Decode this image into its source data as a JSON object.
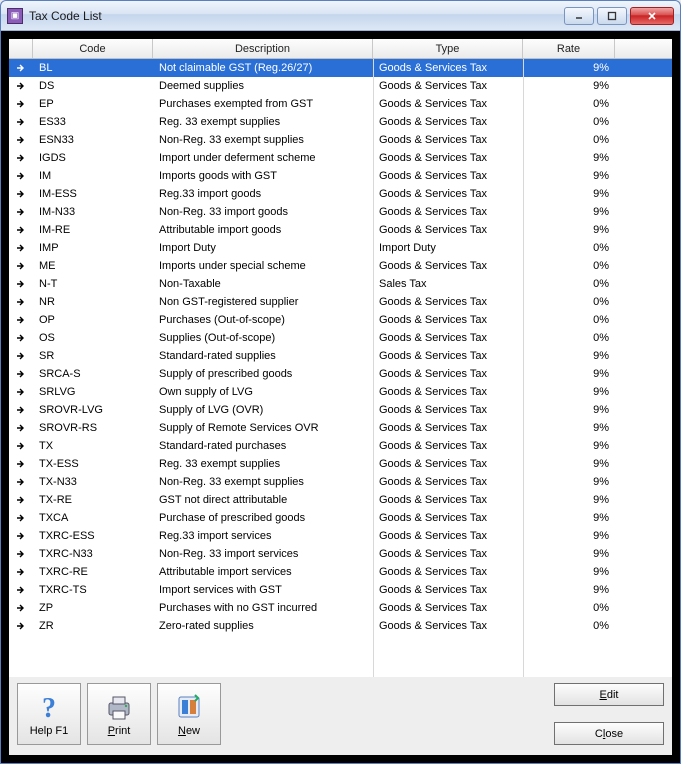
{
  "window": {
    "title": "Tax Code List"
  },
  "columns": {
    "code": "Code",
    "description": "Description",
    "type": "Type",
    "rate": "Rate"
  },
  "rows": [
    {
      "code": "BL",
      "desc": "Not claimable GST (Reg.26/27)",
      "type": "Goods & Services Tax",
      "rate": "9%",
      "selected": true
    },
    {
      "code": "DS",
      "desc": "Deemed supplies",
      "type": "Goods & Services Tax",
      "rate": "9%"
    },
    {
      "code": "EP",
      "desc": "Purchases exempted from GST",
      "type": "Goods & Services Tax",
      "rate": "0%"
    },
    {
      "code": "ES33",
      "desc": "Reg. 33 exempt supplies",
      "type": "Goods & Services Tax",
      "rate": "0%"
    },
    {
      "code": "ESN33",
      "desc": "Non-Reg. 33 exempt supplies",
      "type": "Goods & Services Tax",
      "rate": "0%"
    },
    {
      "code": "IGDS",
      "desc": "Import under deferment scheme",
      "type": "Goods & Services Tax",
      "rate": "9%"
    },
    {
      "code": "IM",
      "desc": "Imports goods with GST",
      "type": "Goods & Services Tax",
      "rate": "9%"
    },
    {
      "code": "IM-ESS",
      "desc": "Reg.33 import goods",
      "type": "Goods & Services Tax",
      "rate": "9%"
    },
    {
      "code": "IM-N33",
      "desc": "Non-Reg. 33 import goods",
      "type": "Goods & Services Tax",
      "rate": "9%"
    },
    {
      "code": "IM-RE",
      "desc": "Attributable import goods",
      "type": "Goods & Services Tax",
      "rate": "9%"
    },
    {
      "code": "IMP",
      "desc": "Import Duty",
      "type": "Import Duty",
      "rate": "0%"
    },
    {
      "code": "ME",
      "desc": "Imports under special scheme",
      "type": "Goods & Services Tax",
      "rate": "0%"
    },
    {
      "code": "N-T",
      "desc": "Non-Taxable",
      "type": "Sales Tax",
      "rate": "0%"
    },
    {
      "code": "NR",
      "desc": "Non GST-registered supplier",
      "type": "Goods & Services Tax",
      "rate": "0%"
    },
    {
      "code": "OP",
      "desc": "Purchases (Out-of-scope)",
      "type": "Goods & Services Tax",
      "rate": "0%"
    },
    {
      "code": "OS",
      "desc": "Supplies (Out-of-scope)",
      "type": "Goods & Services Tax",
      "rate": "0%"
    },
    {
      "code": "SR",
      "desc": "Standard-rated supplies",
      "type": "Goods & Services Tax",
      "rate": "9%"
    },
    {
      "code": "SRCA-S",
      "desc": "Supply of prescribed goods",
      "type": "Goods & Services Tax",
      "rate": "9%"
    },
    {
      "code": "SRLVG",
      "desc": "Own supply of LVG",
      "type": "Goods & Services Tax",
      "rate": "9%"
    },
    {
      "code": "SROVR-LVG",
      "desc": "Supply of LVG (OVR)",
      "type": "Goods & Services Tax",
      "rate": "9%"
    },
    {
      "code": "SROVR-RS",
      "desc": "Supply of Remote Services OVR",
      "type": "Goods & Services Tax",
      "rate": "9%"
    },
    {
      "code": "TX",
      "desc": "Standard-rated purchases",
      "type": "Goods & Services Tax",
      "rate": "9%"
    },
    {
      "code": "TX-ESS",
      "desc": "Reg. 33 exempt supplies",
      "type": "Goods & Services Tax",
      "rate": "9%"
    },
    {
      "code": "TX-N33",
      "desc": "Non-Reg. 33 exempt supplies",
      "type": "Goods & Services Tax",
      "rate": "9%"
    },
    {
      "code": "TX-RE",
      "desc": "GST not direct attributable",
      "type": "Goods & Services Tax",
      "rate": "9%"
    },
    {
      "code": "TXCA",
      "desc": "Purchase of prescribed goods",
      "type": "Goods & Services Tax",
      "rate": "9%"
    },
    {
      "code": "TXRC-ESS",
      "desc": "Reg.33 import services",
      "type": "Goods & Services Tax",
      "rate": "9%"
    },
    {
      "code": "TXRC-N33",
      "desc": "Non-Reg. 33 import services",
      "type": "Goods & Services Tax",
      "rate": "9%"
    },
    {
      "code": "TXRC-RE",
      "desc": "Attributable import services",
      "type": "Goods & Services Tax",
      "rate": "9%"
    },
    {
      "code": "TXRC-TS",
      "desc": "Import services with GST",
      "type": "Goods & Services Tax",
      "rate": "9%"
    },
    {
      "code": "ZP",
      "desc": "Purchases with no GST incurred",
      "type": "Goods & Services Tax",
      "rate": "0%"
    },
    {
      "code": "ZR",
      "desc": "Zero-rated supplies",
      "type": "Goods & Services Tax",
      "rate": "0%"
    }
  ],
  "toolbar": {
    "help": "Help F1",
    "print": "Print",
    "new": "New",
    "edit": "Edit",
    "close": "Close"
  },
  "colors": {
    "selection": "#2a6fd6",
    "titlebar_start": "#f0f5fc",
    "titlebar_end": "#dde8f6",
    "client_bg": "#000000",
    "grid_bg": "#ffffff"
  }
}
